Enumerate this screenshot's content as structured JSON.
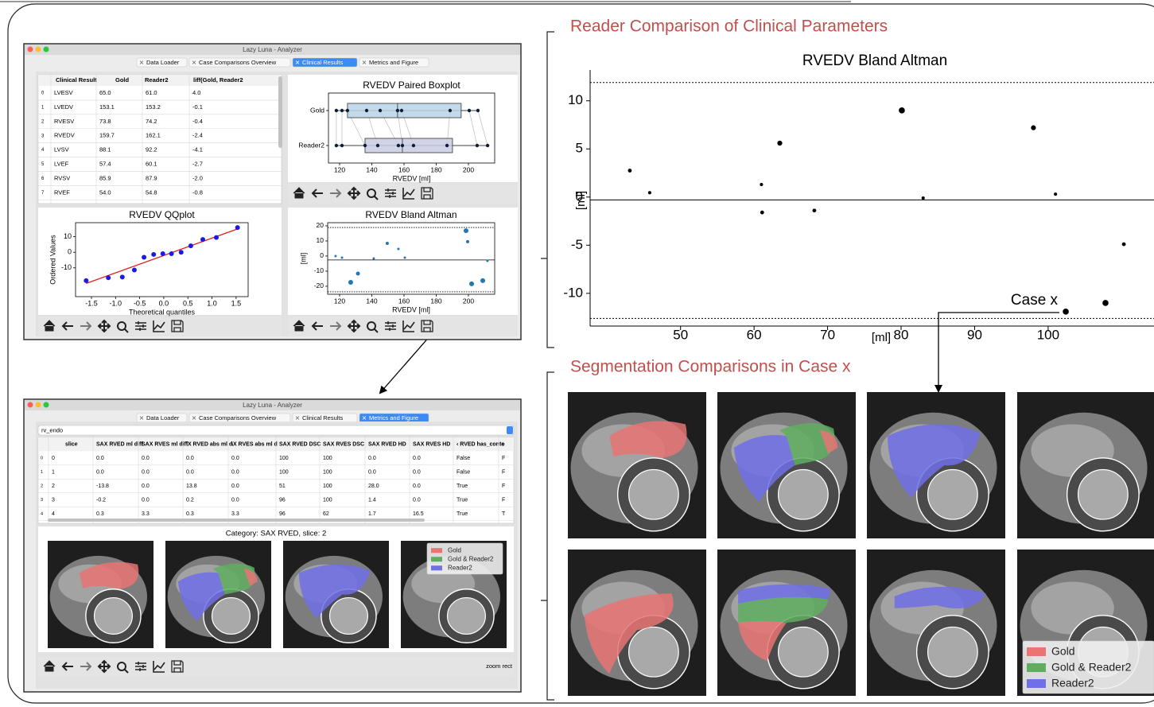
{
  "headings": {
    "clinical": "Reader Comparison of Clinical Parameters",
    "segmentation": "Segmentation Comparisons in Case x"
  },
  "legend": [
    {
      "label": "Gold",
      "color": "#e87474"
    },
    {
      "label": "Gold & Reader2",
      "color": "#5fae5f"
    },
    {
      "label": "Reader2",
      "color": "#6f6fe8"
    }
  ],
  "window1": {
    "title": "Lazy Luna - Analyzer",
    "tabs": [
      "Data Loader",
      "Case Comparisons Overview",
      "Clinical Results",
      "Metrics and Figure"
    ],
    "active_tab": 2,
    "table": {
      "header": [
        "Clinical Result",
        "Gold",
        "Reader2",
        "liff(Gold, Reader2"
      ],
      "rows": [
        [
          "0",
          "LVESV",
          "65.0",
          "61.0",
          "4.0"
        ],
        [
          "1",
          "LVEDV",
          "153.1",
          "153.2",
          "-0.1"
        ],
        [
          "2",
          "RVESV",
          "73.8",
          "74.2",
          "-0.4"
        ],
        [
          "3",
          "RVEDV",
          "159.7",
          "162.1",
          "-2.4"
        ],
        [
          "4",
          "LVSV",
          "88.1",
          "92.2",
          "-4.1"
        ],
        [
          "5",
          "LVEF",
          "57.4",
          "60.1",
          "-2.7"
        ],
        [
          "6",
          "RVSV",
          "85.9",
          "87.9",
          "-2.0"
        ],
        [
          "7",
          "RVEF",
          "54.0",
          "54.8",
          "-0.8"
        ]
      ]
    },
    "boxplot": {
      "title": "RVEDV Paired Boxplot",
      "xlabel": "RVEDV [ml]",
      "categories": [
        "Gold",
        "Reader2"
      ],
      "gold": [
        118.0,
        121.5,
        124.9,
        136.8,
        145.2,
        156.0,
        158.5,
        188.6,
        200.5,
        205.9
      ],
      "reader2": [
        118.0,
        121.5,
        135.8,
        143.7,
        156.5,
        159.0,
        165.9,
        186.7,
        205.4,
        211.9
      ],
      "gold_box": [
        124.9,
        156.0,
        195.5
      ],
      "reader2_box": [
        135.8,
        159.0,
        190.1
      ],
      "xlim": [
        113.1,
        216.3
      ],
      "xticks": [
        120,
        140,
        160,
        180,
        200
      ]
    },
    "qqplot": {
      "title": "RVEDV QQplot",
      "xlabel": "Theoretical quantiles",
      "ylabel": "Ordered Values",
      "x": [
        -1.61,
        -1.15,
        -0.86,
        -0.61,
        -0.41,
        -0.21,
        -0.02,
        0.16,
        0.36,
        0.56,
        0.81,
        1.09,
        1.53
      ],
      "y": [
        -18.2,
        -16.4,
        -15.9,
        -11.4,
        -3.2,
        -1.4,
        -0.9,
        -0.9,
        0,
        4.1,
        8.2,
        9.5,
        15.9
      ],
      "fit_line": {
        "x": [
          -1.61,
          1.53
        ],
        "y": [
          -20,
          15
        ]
      },
      "xlim": [
        -1.83,
        1.75
      ],
      "ylim": [
        -28.5,
        19
      ],
      "xticks": [
        {
          "value": -1.5,
          "label": "-1.5"
        },
        {
          "value": -1,
          "label": "-1.0"
        },
        {
          "value": -0.5,
          "label": "-0.5"
        },
        {
          "value": 0,
          "label": "0.0"
        },
        {
          "value": 0.5,
          "label": "0.5"
        },
        {
          "value": 1,
          "label": "1.0"
        },
        {
          "value": 1.5,
          "label": "1.5"
        }
      ],
      "yticks": [
        -10,
        0,
        10
      ]
    },
    "bland_altman": {
      "title": "RVEDV Bland Altman",
      "xlabel": "RVEDV [ml]",
      "ylabel": "[ml]",
      "x": [
        117.5,
        121.5,
        126.9,
        131.4,
        141.2,
        149.6,
        156.5,
        160.5,
        198.5,
        199.5,
        202.0,
        208.9,
        211.8
      ],
      "y": [
        0,
        -1.1,
        -17.4,
        -11.6,
        -1.6,
        8.4,
        4.7,
        -1.1,
        16.8,
        9.5,
        -18.4,
        -16.3,
        -3.2
      ],
      "sizes": [
        1.5,
        1.5,
        3,
        2.5,
        1.5,
        2,
        1.5,
        1.5,
        3,
        2,
        3,
        3,
        1.5
      ],
      "mean": -2.6,
      "limits": [
        -23.7,
        18.9
      ],
      "xlim": [
        112.6,
        216.3
      ],
      "ylim": [
        -25.3,
        22.1
      ],
      "xticks": [
        120,
        140,
        160,
        180,
        200
      ],
      "yticks": [
        -20,
        -10,
        0,
        10,
        20
      ]
    }
  },
  "window2": {
    "title": "Lazy Luna - Analyzer",
    "tabs": [
      "Data Loader",
      "Case Comparisons Overview",
      "Clinical Results",
      "Metrics and Figure"
    ],
    "active_tab": 3,
    "dropdown": "rv_endo",
    "table": {
      "header": [
        "slice",
        "SAX RVED ml diff",
        "SAX RVES ml diff",
        "\\X RVED abs ml d",
        "\\X RVES abs ml d",
        "SAX RVED DSC",
        "SAX RVES DSC",
        "SAX RVED HD",
        "SAX RVES HD",
        "‹ RVED has_conto",
        "‹"
      ],
      "rows": [
        [
          "0",
          "0",
          "0.0",
          "0.0",
          "0.0",
          "0.0",
          "100",
          "100",
          "0.0",
          "0.0",
          "False",
          "F"
        ],
        [
          "1",
          "1",
          "0.0",
          "0.0",
          "0.0",
          "0.0",
          "100",
          "100",
          "0.0",
          "0.0",
          "False",
          "F"
        ],
        [
          "2",
          "2",
          "-13.8",
          "0.0",
          "13.8",
          "0.0",
          "51",
          "100",
          "28.0",
          "0.0",
          "True",
          "F"
        ],
        [
          "3",
          "3",
          "-0.2",
          "0.0",
          "0.2",
          "0.0",
          "96",
          "100",
          "1.4",
          "0.0",
          "True",
          "F"
        ],
        [
          "4",
          "4",
          "0.3",
          "3.3",
          "0.3",
          "3.3",
          "96",
          "62",
          "1.7",
          "16.5",
          "True",
          "T"
        ]
      ]
    },
    "figure_title": "Category: SAX RVED, slice: 2",
    "status": "zoom rect"
  },
  "chart_data": {
    "type": "scatter",
    "title": "RVEDV Bland Altman",
    "xlabel": "[ml]",
    "ylabel": "[ml]",
    "x": [
      43.1,
      45.8,
      61.0,
      63.5,
      61.1,
      68.2,
      80.1,
      83.0,
      98.0,
      101.0,
      110.3,
      102.4,
      107.8
    ],
    "y": [
      2.75,
      0.45,
      1.3,
      5.6,
      -1.6,
      -1.4,
      9.0,
      -0.1,
      7.2,
      0.3,
      -4.9,
      -11.9,
      -11.0
    ],
    "sizes": [
      2,
      1.5,
      1.5,
      3,
      2,
      2,
      4,
      1.5,
      3,
      1.5,
      2,
      4,
      4
    ],
    "color": "#000000",
    "mean": -0.3,
    "limits": [
      -12.6,
      11.9
    ],
    "xlim": [
      37.7,
      114.4
    ],
    "ylim": [
      -13.4,
      13.2
    ],
    "xticks": [
      50,
      60,
      70,
      80,
      90,
      100
    ],
    "yticks": [
      -10,
      -5,
      0,
      5,
      10
    ],
    "annotation": {
      "text": "Case x",
      "x": 102.4,
      "y": -11.9
    }
  }
}
